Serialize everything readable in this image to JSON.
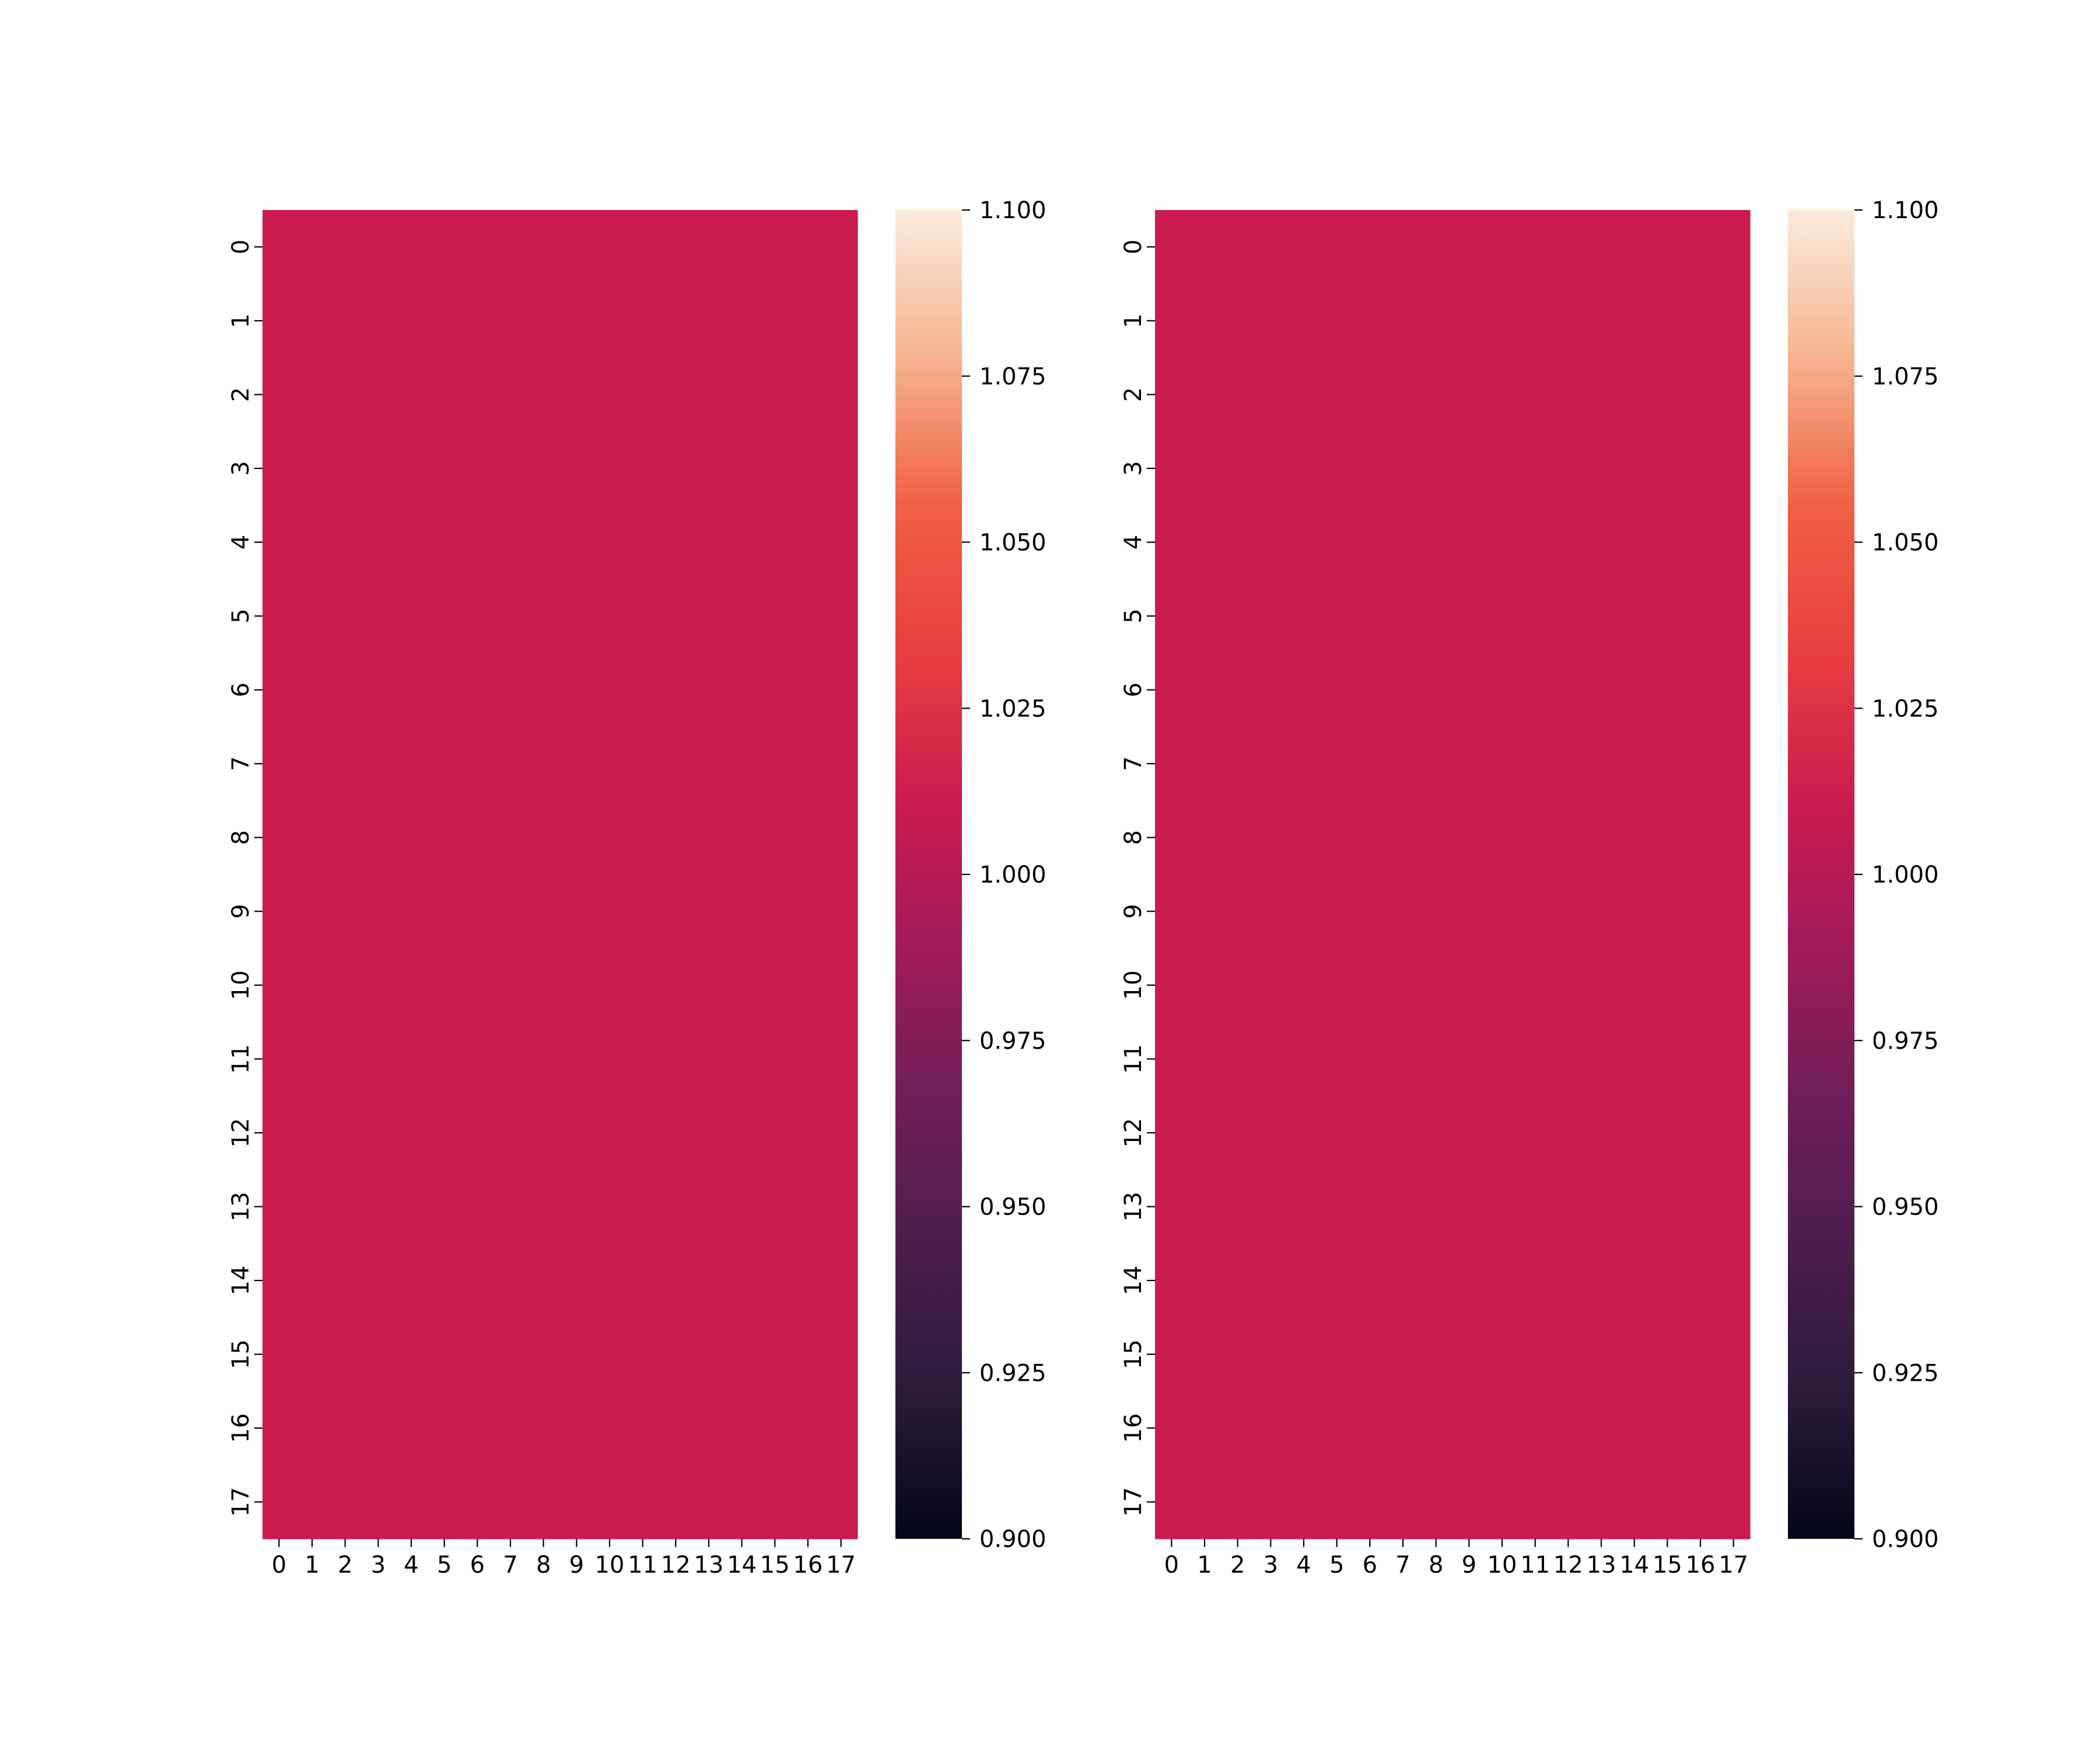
{
  "chart_data": [
    {
      "type": "heatmap",
      "panel": "left",
      "rows": [
        "0",
        "1",
        "2",
        "3",
        "4",
        "5",
        "6",
        "7",
        "8",
        "9",
        "10",
        "11",
        "12",
        "13",
        "14",
        "15",
        "16",
        "17"
      ],
      "columns": [
        "0",
        "1",
        "2",
        "3",
        "4",
        "5",
        "6",
        "7",
        "8",
        "9",
        "10",
        "11",
        "12",
        "13",
        "14",
        "15",
        "16",
        "17"
      ],
      "fill_value": 1.0,
      "colorbar": {
        "range": [
          0.9,
          1.1
        ],
        "ticks": [
          0.9,
          0.925,
          0.95,
          0.975,
          1.0,
          1.025,
          1.05,
          1.075,
          1.1
        ],
        "tick_labels": [
          "0.900",
          "0.925",
          "0.950",
          "0.975",
          "1.000",
          "1.025",
          "1.050",
          "1.075",
          "1.100"
        ]
      },
      "title": "",
      "xlabel": "",
      "ylabel": "",
      "grid": false
    },
    {
      "type": "heatmap",
      "panel": "right",
      "rows": [
        "0",
        "1",
        "2",
        "3",
        "4",
        "5",
        "6",
        "7",
        "8",
        "9",
        "10",
        "11",
        "12",
        "13",
        "14",
        "15",
        "16",
        "17"
      ],
      "columns": [
        "0",
        "1",
        "2",
        "3",
        "4",
        "5",
        "6",
        "7",
        "8",
        "9",
        "10",
        "11",
        "12",
        "13",
        "14",
        "15",
        "16",
        "17"
      ],
      "fill_value": 1.0,
      "colorbar": {
        "range": [
          0.9,
          1.1
        ],
        "ticks": [
          0.9,
          0.925,
          0.95,
          0.975,
          1.0,
          1.025,
          1.05,
          1.075,
          1.1
        ],
        "tick_labels": [
          "0.900",
          "0.925",
          "0.950",
          "0.975",
          "1.000",
          "1.025",
          "1.050",
          "1.075",
          "1.100"
        ]
      },
      "title": "",
      "xlabel": "",
      "ylabel": "",
      "grid": false
    }
  ],
  "colormap": {
    "name": "rocket",
    "stops": [
      "#03051a",
      "#2b1b3a",
      "#4c1d4b",
      "#701f57",
      "#a11a5b",
      "#cb1b4f",
      "#e83f3f",
      "#f06043",
      "#f6b48f",
      "#faebdd"
    ],
    "cell_color": "#cb1b4f"
  }
}
